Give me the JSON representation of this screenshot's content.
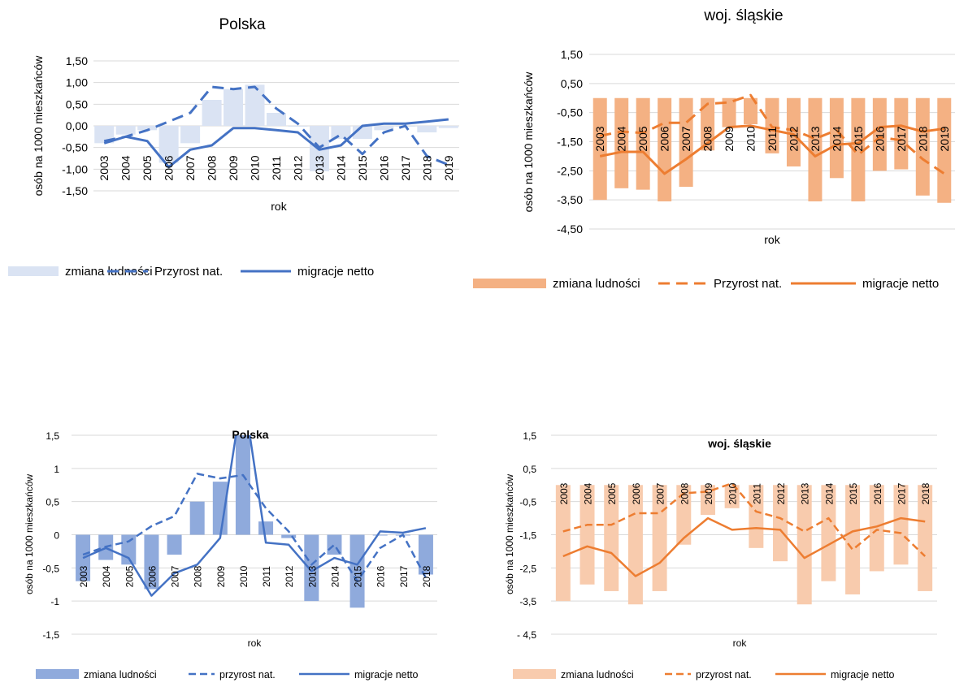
{
  "chart_data": [
    {
      "type": "bar",
      "title": "Polska",
      "ylabel": "osób na 1000 mieszkańców",
      "xlabel": "rok",
      "ylim": [
        -1.5,
        1.5
      ],
      "yticks": [
        "1,50",
        "1,00",
        "0,50",
        "0,00",
        "-0,50",
        "-1,00",
        "-1,50"
      ],
      "grid": true,
      "legend_position": "bottom",
      "colors": {
        "bar": "#dae3f3",
        "line": "#4472c4"
      },
      "categories": [
        "2003",
        "2004",
        "2005",
        "2006",
        "2007",
        "2008",
        "2009",
        "2010",
        "2011",
        "2012",
        "2013",
        "2014",
        "2015",
        "2016",
        "2017",
        "2018",
        "2019"
      ],
      "series": [
        {
          "name": "zmiana ludności",
          "kind": "bar",
          "values": [
            -0.4,
            -0.2,
            -0.1,
            -0.85,
            -0.4,
            0.6,
            0.85,
            0.95,
            0.3,
            0.0,
            -1.05,
            -0.3,
            -0.3,
            -0.1,
            0.0,
            -0.15,
            -0.05
          ]
        },
        {
          "name": "Przyrost nat.",
          "kind": "dashed",
          "values": [
            -0.35,
            -0.25,
            -0.1,
            0.1,
            0.3,
            0.9,
            0.85,
            0.9,
            0.4,
            0.05,
            -0.5,
            -0.2,
            -0.65,
            -0.15,
            0.0,
            -0.7,
            -0.9
          ]
        },
        {
          "name": "migracje netto",
          "kind": "solid",
          "values": [
            -0.4,
            -0.25,
            -0.35,
            -0.95,
            -0.55,
            -0.45,
            -0.05,
            -0.05,
            -0.1,
            -0.15,
            -0.55,
            -0.45,
            0.0,
            0.05,
            0.05,
            0.1,
            0.15
          ]
        }
      ]
    },
    {
      "type": "bar",
      "title": "woj. śląskie",
      "ylabel": "osób na 1000 mieszkańców",
      "xlabel": "rok",
      "ylim": [
        -4.5,
        1.5
      ],
      "yticks": [
        "1,50",
        "0,50",
        "-0,50",
        "-1,50",
        "-2,50",
        "-3,50",
        "-4,50"
      ],
      "grid": true,
      "legend_position": "bottom",
      "colors": {
        "bar": "#f4b183",
        "line": "#ed7d31"
      },
      "categories": [
        "2003",
        "2004",
        "2005",
        "2006",
        "2007",
        "2008",
        "2009",
        "2010",
        "2011",
        "2012",
        "2013",
        "2014",
        "2015",
        "2016",
        "2017",
        "2018",
        "2019"
      ],
      "series": [
        {
          "name": "zmiana ludności",
          "kind": "bar",
          "values": [
            -3.5,
            -3.1,
            -3.15,
            -3.55,
            -3.05,
            -1.8,
            -1.0,
            -0.9,
            -1.9,
            -2.35,
            -3.55,
            -2.75,
            -3.55,
            -2.5,
            -2.45,
            -3.35,
            -3.6
          ]
        },
        {
          "name": "Przyrost nat.",
          "kind": "dashed",
          "values": [
            -1.3,
            -1.15,
            -1.2,
            -0.85,
            -0.85,
            -0.2,
            -0.15,
            0.1,
            -1.0,
            -1.1,
            -1.4,
            -1.1,
            -1.95,
            -1.35,
            -1.45,
            -2.1,
            -2.6
          ]
        },
        {
          "name": "migracje netto",
          "kind": "solid",
          "values": [
            -2.0,
            -1.85,
            -1.85,
            -2.6,
            -2.1,
            -1.55,
            -1.0,
            -0.95,
            -1.1,
            -1.25,
            -2.0,
            -1.6,
            -1.55,
            -1.0,
            -0.95,
            -1.15,
            -1.05
          ]
        }
      ]
    },
    {
      "type": "bar",
      "title": "Polska",
      "ylabel": "osób na 1000 mieszkańców",
      "xlabel": "rok",
      "ylim": [
        -1.5,
        1.5
      ],
      "yticks": [
        "1,5",
        "1",
        "0,5",
        "0",
        "-0,5",
        "-1",
        "-1,5"
      ],
      "grid": true,
      "legend_position": "bottom",
      "colors": {
        "bar": "#8faadc",
        "line": "#4472c4"
      },
      "categories": [
        "2003",
        "2004",
        "2005",
        "2006",
        "2007",
        "2008",
        "2009",
        "2010",
        "2011",
        "2012",
        "2013",
        "2014",
        "2015",
        "2016",
        "2017",
        "2018"
      ],
      "series": [
        {
          "name": "zmiana ludności",
          "kind": "bar",
          "values": [
            -0.7,
            -0.38,
            -0.45,
            -0.82,
            -0.3,
            0.5,
            0.8,
            1.5,
            0.2,
            -0.05,
            -1.0,
            -0.3,
            -1.1,
            0.0,
            0.0,
            -0.6
          ]
        },
        {
          "name": "przyrost nat.",
          "kind": "dashed",
          "values": [
            -0.3,
            -0.18,
            -0.1,
            0.13,
            0.28,
            0.92,
            0.85,
            0.9,
            0.4,
            0.05,
            -0.45,
            -0.15,
            -0.7,
            -0.2,
            0.0,
            -0.65
          ]
        },
        {
          "name": "migracje netto",
          "kind": "solid",
          "values": [
            -0.35,
            -0.2,
            -0.35,
            -0.92,
            -0.58,
            -0.45,
            -0.05,
            null,
            -0.12,
            -0.15,
            -0.55,
            -0.35,
            -0.45,
            0.05,
            0.03,
            0.1
          ]
        }
      ]
    },
    {
      "type": "bar",
      "title": "woj. śląskie",
      "ylabel": "osób na 1000 mieszkańców",
      "xlabel": "rok",
      "ylim": [
        -4.5,
        1.5
      ],
      "yticks": [
        "1,5",
        "0,5",
        "-0,5",
        "-1,5",
        "-2,5",
        "-3,5",
        "- 4,5"
      ],
      "grid": true,
      "legend_position": "bottom",
      "colors": {
        "bar": "#f8cbad",
        "line": "#ed7d31"
      },
      "categories": [
        "2003",
        "2004",
        "2005",
        "2006",
        "2007",
        "2008",
        "2009",
        "2010",
        "2011",
        "2012",
        "2013",
        "2014",
        "2015",
        "2016",
        "2017",
        "2018"
      ],
      "series": [
        {
          "name": "zmiana ludności",
          "kind": "bar",
          "values": [
            -3.5,
            -3.0,
            -3.2,
            -3.6,
            -3.2,
            -1.8,
            -0.9,
            -0.7,
            -1.9,
            -2.3,
            -3.6,
            -2.9,
            -3.3,
            -2.6,
            -2.4,
            -3.2
          ]
        },
        {
          "name": "przyrost nat.",
          "kind": "dashed",
          "values": [
            -1.4,
            -1.2,
            -1.2,
            -0.85,
            -0.85,
            -0.25,
            -0.2,
            0.05,
            -0.8,
            -1.0,
            -1.4,
            -1.0,
            -1.95,
            -1.35,
            -1.45,
            -2.15
          ]
        },
        {
          "name": "migracje netto",
          "kind": "solid",
          "values": [
            -2.15,
            -1.85,
            -2.05,
            -2.75,
            -2.35,
            -1.6,
            -1.0,
            -1.35,
            -1.3,
            -1.35,
            -2.2,
            -1.8,
            -1.4,
            -1.25,
            -1.0,
            -1.1
          ]
        }
      ]
    }
  ]
}
